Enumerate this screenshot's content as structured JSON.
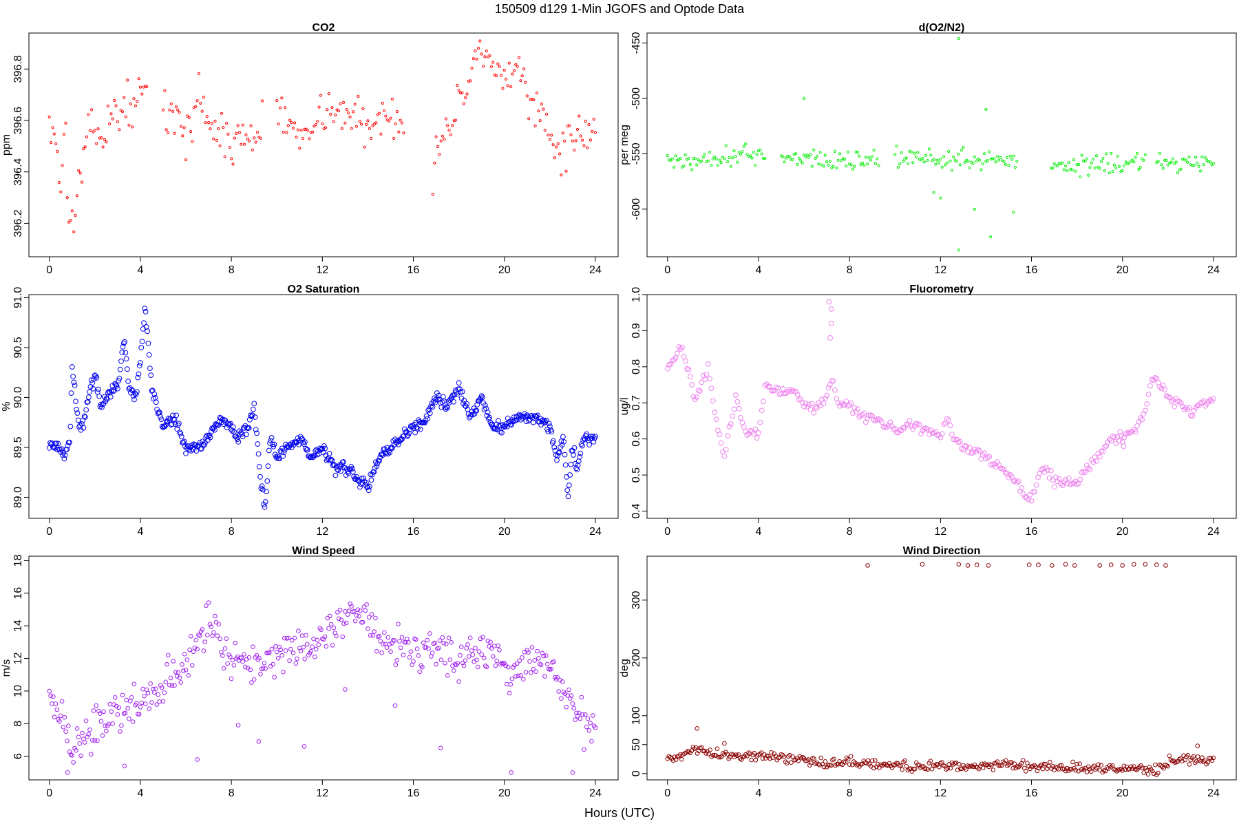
{
  "figure": {
    "title": "150509   d129   1-Min  JGOFS and Optode Data",
    "xlabel": "Hours (UTC)"
  },
  "chart_data": [
    {
      "type": "scatter",
      "title": "CO2",
      "xlabel": "",
      "ylabel": "ppm",
      "xlim": [
        -0.9,
        25.0
      ],
      "ylim": [
        396.07,
        396.94
      ],
      "xticks": [
        0,
        4,
        8,
        12,
        16,
        20,
        24
      ],
      "yticks": [
        396.2,
        396.4,
        396.6,
        396.8
      ],
      "ytick_labels": [
        "396.2",
        "396.4",
        "396.6",
        "396.8"
      ],
      "color": "#ff0000",
      "marker_radius": 1.6,
      "series": [
        {
          "x": [
            0,
            0.3,
            0.5,
            0.7,
            0.85,
            1.0,
            1.2,
            1.5,
            1.8,
            2.0,
            2.3,
            2.6,
            3.0,
            3.5,
            4.0,
            4.3,
            5.0,
            5.5,
            6.0,
            6.3,
            6.6,
            7.0,
            7.5,
            8.0,
            8.5,
            9.0,
            9.4,
            10.0,
            10.5,
            11.0,
            11.5,
            12.0,
            12.5,
            13.0,
            13.5,
            14.0,
            14.5,
            15.0,
            15.3,
            15.6,
            16.8,
            17.2,
            17.6,
            18.0,
            18.5,
            18.9,
            19.3,
            19.8,
            20.2,
            20.6,
            20.8,
            21.2,
            21.6,
            22.0,
            22.4,
            22.8,
            23.2,
            23.6,
            24.0
          ],
          "y": [
            396.62,
            396.5,
            396.35,
            396.6,
            396.14,
            396.22,
            396.3,
            396.45,
            396.55,
            396.6,
            396.52,
            396.6,
            396.63,
            396.66,
            396.7,
            396.72,
            396.65,
            396.6,
            396.55,
            396.62,
            396.7,
            396.6,
            396.55,
            396.5,
            396.55,
            396.52,
            396.6,
            396.65,
            396.58,
            396.55,
            396.6,
            396.62,
            396.66,
            396.6,
            396.62,
            396.56,
            396.6,
            396.64,
            396.62,
            396.58,
            396.4,
            396.5,
            396.6,
            396.68,
            396.75,
            396.86,
            396.8,
            396.78,
            396.72,
            396.82,
            396.78,
            396.65,
            396.66,
            396.55,
            396.45,
            396.5,
            396.55,
            396.56,
            396.55
          ]
        }
      ],
      "gaps": [
        [
          4.3,
          5.0
        ],
        [
          9.4,
          10.0
        ],
        [
          15.6,
          16.8
        ]
      ],
      "jitter": 0.07,
      "density": 14
    },
    {
      "type": "scatter",
      "title": "d(O2/N2)",
      "xlabel": "",
      "ylabel": "per meg",
      "xlim": [
        -0.9,
        25.0
      ],
      "ylim": [
        -643,
        -441
      ],
      "xticks": [
        0,
        4,
        8,
        12,
        16,
        20,
        24
      ],
      "yticks": [
        -600,
        -550,
        -500,
        -450
      ],
      "ytick_labels": [
        "-600",
        "-550",
        "-500",
        "-450"
      ],
      "color": "#00ee00",
      "marker_radius": 1.6,
      "series": [
        {
          "x": [
            0,
            1,
            2,
            3,
            4,
            4.3,
            5.0,
            6.0,
            7.0,
            8.0,
            9.0,
            9.3,
            10.0,
            11.0,
            12.0,
            12.5,
            13.0,
            13.5,
            14.0,
            14.5,
            15.0,
            15.4,
            16.8,
            18.0,
            19.0,
            20.0,
            21.0,
            21.5,
            22.0,
            23.0,
            24.0
          ],
          "y": [
            -556,
            -557,
            -553,
            -550,
            -552,
            -550,
            -552,
            -554,
            -556,
            -556,
            -555,
            -555,
            -556,
            -553,
            -555,
            -555,
            -555,
            -556,
            -556,
            -555,
            -556,
            -555,
            -560,
            -560,
            -558,
            -558,
            -558,
            -557,
            -560,
            -557,
            -557
          ]
        }
      ],
      "gaps": [
        [
          4.3,
          5.0
        ],
        [
          9.3,
          10.0
        ],
        [
          15.4,
          16.8
        ],
        [
          21.0,
          21.5
        ]
      ],
      "jitter": 8,
      "density": 14,
      "outliers": [
        [
          6.0,
          -500
        ],
        [
          12.8,
          -446
        ],
        [
          12.8,
          -637
        ],
        [
          14.0,
          -510
        ],
        [
          14.2,
          -625
        ],
        [
          15.2,
          -603
        ],
        [
          13.5,
          -600
        ],
        [
          12.0,
          -590
        ],
        [
          11.7,
          -585
        ]
      ]
    },
    {
      "type": "scatter",
      "title": "O2 Saturation",
      "xlabel": "",
      "ylabel": "%",
      "xlim": [
        -0.9,
        25.0
      ],
      "ylim": [
        88.79,
        91.03
      ],
      "xticks": [
        0,
        4,
        8,
        12,
        16,
        20,
        24
      ],
      "yticks": [
        89.0,
        89.5,
        90.0,
        90.5,
        91.0
      ],
      "ytick_labels": [
        "89.0",
        "89.5",
        "90.0",
        "90.5",
        "91.0"
      ],
      "color": "#0000ee",
      "marker_radius": 3.4,
      "series": [
        {
          "x": [
            0,
            0.3,
            0.5,
            0.7,
            0.9,
            1.0,
            1.3,
            1.6,
            1.8,
            2.0,
            2.3,
            2.6,
            3.0,
            3.3,
            3.5,
            3.8,
            4.0,
            4.2,
            4.5,
            5.0,
            5.5,
            6.0,
            6.5,
            7.0,
            7.5,
            8.0,
            8.3,
            8.7,
            9.0,
            9.3,
            9.5,
            9.7,
            10.0,
            10.5,
            11.0,
            11.5,
            12.0,
            12.5,
            13.0,
            13.5,
            14.0,
            14.5,
            15.0,
            15.5,
            16.0,
            16.5,
            17.0,
            17.5,
            18.0,
            18.5,
            19.0,
            19.5,
            20.0,
            20.5,
            21.0,
            21.5,
            22.0,
            22.3,
            22.6,
            22.8,
            23.0,
            23.2,
            23.5,
            24.0
          ],
          "y": [
            89.55,
            89.5,
            89.5,
            89.4,
            89.6,
            90.3,
            89.7,
            89.8,
            90.1,
            90.2,
            89.9,
            90.05,
            90.1,
            90.6,
            90.1,
            90.0,
            90.4,
            90.9,
            90.1,
            89.7,
            89.8,
            89.5,
            89.5,
            89.6,
            89.8,
            89.7,
            89.6,
            89.7,
            89.9,
            89.1,
            88.9,
            89.6,
            89.4,
            89.5,
            89.6,
            89.4,
            89.5,
            89.3,
            89.3,
            89.2,
            89.1,
            89.4,
            89.5,
            89.6,
            89.7,
            89.75,
            90.0,
            89.9,
            90.1,
            89.8,
            90.0,
            89.7,
            89.7,
            89.8,
            89.8,
            89.8,
            89.7,
            89.4,
            89.6,
            89.0,
            89.5,
            89.3,
            89.6,
            89.6
          ]
        }
      ],
      "gaps": [],
      "jitter": 0.05,
      "density": 26
    },
    {
      "type": "scatter",
      "title": "Fluorometry",
      "xlabel": "",
      "ylabel": "ug/l",
      "xlim": [
        -0.9,
        25.0
      ],
      "ylim": [
        0.38,
        1.0
      ],
      "xticks": [
        0,
        4,
        8,
        12,
        16,
        20,
        24
      ],
      "yticks": [
        0.4,
        0.5,
        0.6,
        0.7,
        0.8,
        0.9,
        1.0
      ],
      "ytick_labels": [
        "0.4",
        "0.5",
        "0.6",
        "0.7",
        "0.8",
        "0.9",
        "1.0"
      ],
      "color": "#ee82ee",
      "marker_radius": 3.4,
      "series": [
        {
          "x": [
            0,
            0.3,
            0.6,
            0.9,
            1.2,
            1.5,
            1.8,
            2.0,
            2.3,
            2.5,
            2.8,
            3.0,
            3.3,
            3.6,
            4.0,
            4.3,
            4.6,
            5.0,
            5.5,
            6.0,
            6.5,
            7.0,
            7.2,
            7.5,
            8.0,
            8.5,
            9.0,
            9.5,
            10.0,
            10.5,
            11.0,
            11.5,
            12.0,
            12.3,
            12.6,
            13.0,
            13.5,
            14.0,
            14.5,
            15.0,
            15.5,
            15.8,
            16.0,
            16.3,
            16.6,
            17.0,
            17.5,
            18.0,
            18.3,
            18.6,
            19.0,
            19.5,
            19.8,
            20.0,
            20.5,
            21.0,
            21.3,
            21.6,
            22.0,
            22.5,
            23.0,
            23.5,
            24.0
          ],
          "y": [
            0.8,
            0.82,
            0.85,
            0.8,
            0.7,
            0.75,
            0.8,
            0.7,
            0.6,
            0.56,
            0.65,
            0.72,
            0.63,
            0.62,
            0.62,
            0.75,
            0.74,
            0.73,
            0.73,
            0.7,
            0.68,
            0.72,
            0.77,
            0.7,
            0.69,
            0.67,
            0.66,
            0.64,
            0.63,
            0.64,
            0.63,
            0.62,
            0.61,
            0.66,
            0.6,
            0.58,
            0.57,
            0.55,
            0.53,
            0.5,
            0.47,
            0.44,
            0.43,
            0.5,
            0.52,
            0.48,
            0.48,
            0.48,
            0.52,
            0.53,
            0.56,
            0.6,
            0.6,
            0.6,
            0.62,
            0.67,
            0.77,
            0.75,
            0.72,
            0.7,
            0.67,
            0.7,
            0.71
          ]
        }
      ],
      "gaps": [],
      "jitter": 0.012,
      "density": 14,
      "outliers": [
        [
          7.1,
          0.98
        ],
        [
          7.2,
          0.96
        ],
        [
          7.2,
          0.92
        ],
        [
          7.15,
          0.88
        ],
        [
          19.9,
          0.62
        ],
        [
          20.05,
          0.58
        ]
      ]
    },
    {
      "type": "scatter",
      "title": "Wind Speed",
      "xlabel": "",
      "ylabel": "m/s",
      "xlim": [
        -0.9,
        25.0
      ],
      "ylim": [
        4.55,
        18.27
      ],
      "xticks": [
        0,
        4,
        8,
        12,
        16,
        20,
        24
      ],
      "yticks": [
        6,
        8,
        10,
        12,
        14,
        16,
        18
      ],
      "ytick_labels": [
        "6",
        "8",
        "10",
        "12",
        "14",
        "16",
        "18"
      ],
      "color": "#a020f0",
      "marker_radius": 2.8,
      "series": [
        {
          "x": [
            0,
            0.5,
            1,
            1.5,
            2,
            2.5,
            3,
            3.5,
            4,
            4.5,
            5,
            5.5,
            6,
            6.5,
            7,
            7.5,
            8,
            8.5,
            9,
            9.5,
            10,
            10.5,
            11,
            11.5,
            12,
            12.5,
            13,
            13.5,
            14,
            14.5,
            15,
            15.5,
            16,
            16.5,
            17,
            17.5,
            18,
            18.5,
            19,
            19.5,
            20,
            20.5,
            21,
            21.5,
            22,
            22.5,
            23,
            23.5,
            24
          ],
          "y": [
            9.8,
            8.5,
            6.2,
            7.2,
            7.8,
            8.4,
            8.9,
            9.0,
            9.5,
            9.8,
            10.5,
            11.2,
            12.0,
            13.0,
            14.0,
            13.2,
            12.0,
            11.8,
            11.5,
            11.8,
            12.2,
            12.5,
            12.8,
            12.6,
            13.2,
            14.0,
            14.8,
            15.0,
            14.2,
            13.2,
            12.8,
            12.5,
            12.3,
            12.5,
            12.5,
            12.3,
            12.0,
            12.8,
            12.6,
            12.5,
            11.5,
            11.0,
            12.0,
            11.5,
            11.2,
            10.0,
            9.0,
            8.2,
            8.0
          ]
        }
      ],
      "gaps": [],
      "jitter": 1.1,
      "density": 18,
      "outliers": [
        [
          0.8,
          5.0
        ],
        [
          6.5,
          5.8
        ],
        [
          20.3,
          5.0
        ],
        [
          23.0,
          5.0
        ],
        [
          9.2,
          6.9
        ],
        [
          11.2,
          6.6
        ],
        [
          17.2,
          6.5
        ],
        [
          3.3,
          5.4
        ],
        [
          8.3,
          7.9
        ],
        [
          13.0,
          10.1
        ],
        [
          15.2,
          9.1
        ]
      ]
    },
    {
      "type": "scatter",
      "title": "Wind Direction",
      "xlabel": "",
      "ylabel": "deg",
      "xlim": [
        -0.9,
        25.0
      ],
      "ylim": [
        -11,
        376
      ],
      "xticks": [
        0,
        4,
        8,
        12,
        16,
        20,
        24
      ],
      "yticks": [
        0,
        50,
        100,
        200,
        300
      ],
      "ytick_labels": [
        "0",
        "50",
        "100",
        "200",
        "300"
      ],
      "color": "#8b0000",
      "marker_radius": 2.8,
      "series": [
        {
          "x": [
            0,
            0.5,
            1,
            1.5,
            2,
            2.5,
            3,
            3.5,
            4,
            4.5,
            5,
            6,
            7,
            8,
            9,
            10,
            11,
            12,
            13,
            14,
            15,
            16,
            17,
            18,
            19,
            20,
            20.5,
            21,
            21.5,
            22,
            22.5,
            23,
            23.5,
            24
          ],
          "y": [
            20,
            30,
            40,
            42,
            35,
            30,
            30,
            30,
            32,
            30,
            28,
            22,
            18,
            20,
            15,
            15,
            12,
            15,
            12,
            12,
            18,
            12,
            12,
            10,
            8,
            10,
            8,
            6,
            5,
            20,
            25,
            25,
            25,
            25
          ]
        }
      ],
      "gaps": [],
      "jitter": 7,
      "density": 16,
      "outliers": [
        [
          1.3,
          78
        ],
        [
          2.5,
          52
        ],
        [
          23.3,
          48
        ],
        [
          8.8,
          360
        ],
        [
          11.2,
          362
        ],
        [
          12.8,
          362
        ],
        [
          13.2,
          360
        ],
        [
          13.6,
          361
        ],
        [
          14.1,
          360
        ],
        [
          15.9,
          361
        ],
        [
          16.3,
          361
        ],
        [
          16.9,
          360
        ],
        [
          17.5,
          362
        ],
        [
          17.9,
          360
        ],
        [
          19.0,
          360
        ],
        [
          19.5,
          361
        ],
        [
          20.0,
          360
        ],
        [
          20.5,
          362
        ],
        [
          21.0,
          362
        ],
        [
          21.5,
          361
        ],
        [
          21.9,
          360
        ]
      ]
    }
  ]
}
